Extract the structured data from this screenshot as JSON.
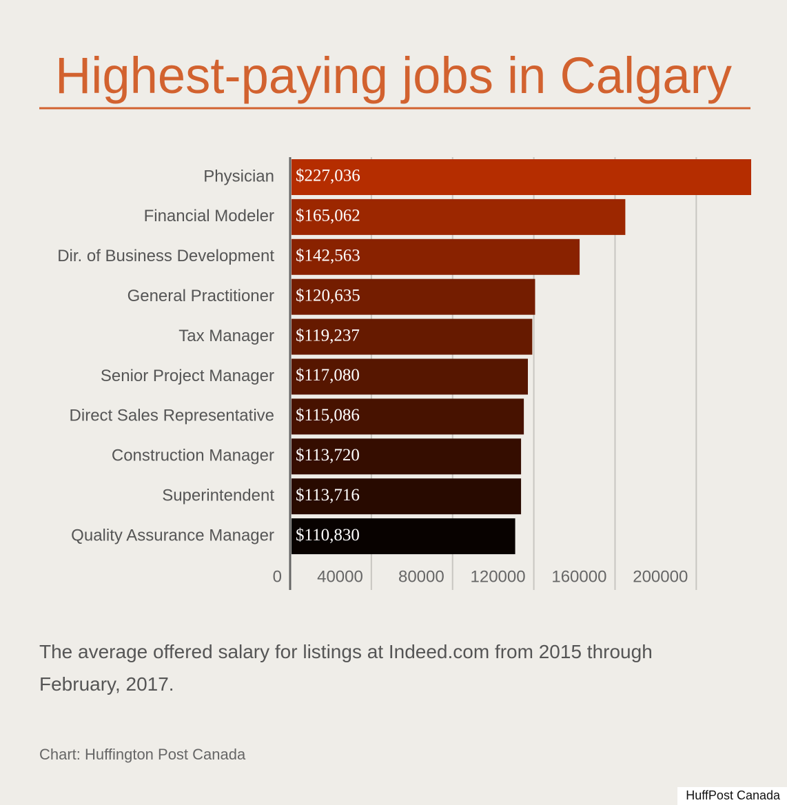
{
  "chart_data": {
    "type": "bar",
    "orientation": "horizontal",
    "title": "Highest-paying jobs in Calgary",
    "subtitle": "The average offered salary for listings at Indeed.com from 2015 through February, 2017.",
    "source": "Chart: Huffington Post Canada",
    "credit": "HuffPost Canada",
    "categories": [
      "Physician",
      "Financial Modeler",
      "Dir. of Business Development",
      "General Practitioner",
      "Tax Manager",
      "Senior Project Manager",
      "Direct Sales Representative",
      "Construction Manager",
      "Superintendent",
      "Quality Assurance Manager"
    ],
    "values": [
      227036,
      165062,
      142563,
      120635,
      119237,
      117080,
      115086,
      113720,
      113716,
      110830
    ],
    "value_labels": [
      "$227,036",
      "$165,062",
      "$142,563",
      "$120,635",
      "$119,237",
      "$117,080",
      "$115,086",
      "$113,720",
      "$113,716",
      "$110,830"
    ],
    "colors": [
      "#b52d00",
      "#9c2700",
      "#892200",
      "#741d00",
      "#661a00",
      "#561600",
      "#471200",
      "#350d00",
      "#280a00",
      "#080200"
    ],
    "xlim": [
      0,
      227036
    ],
    "xticks": [
      0,
      40000,
      80000,
      120000,
      160000,
      200000
    ],
    "grid": true
  }
}
